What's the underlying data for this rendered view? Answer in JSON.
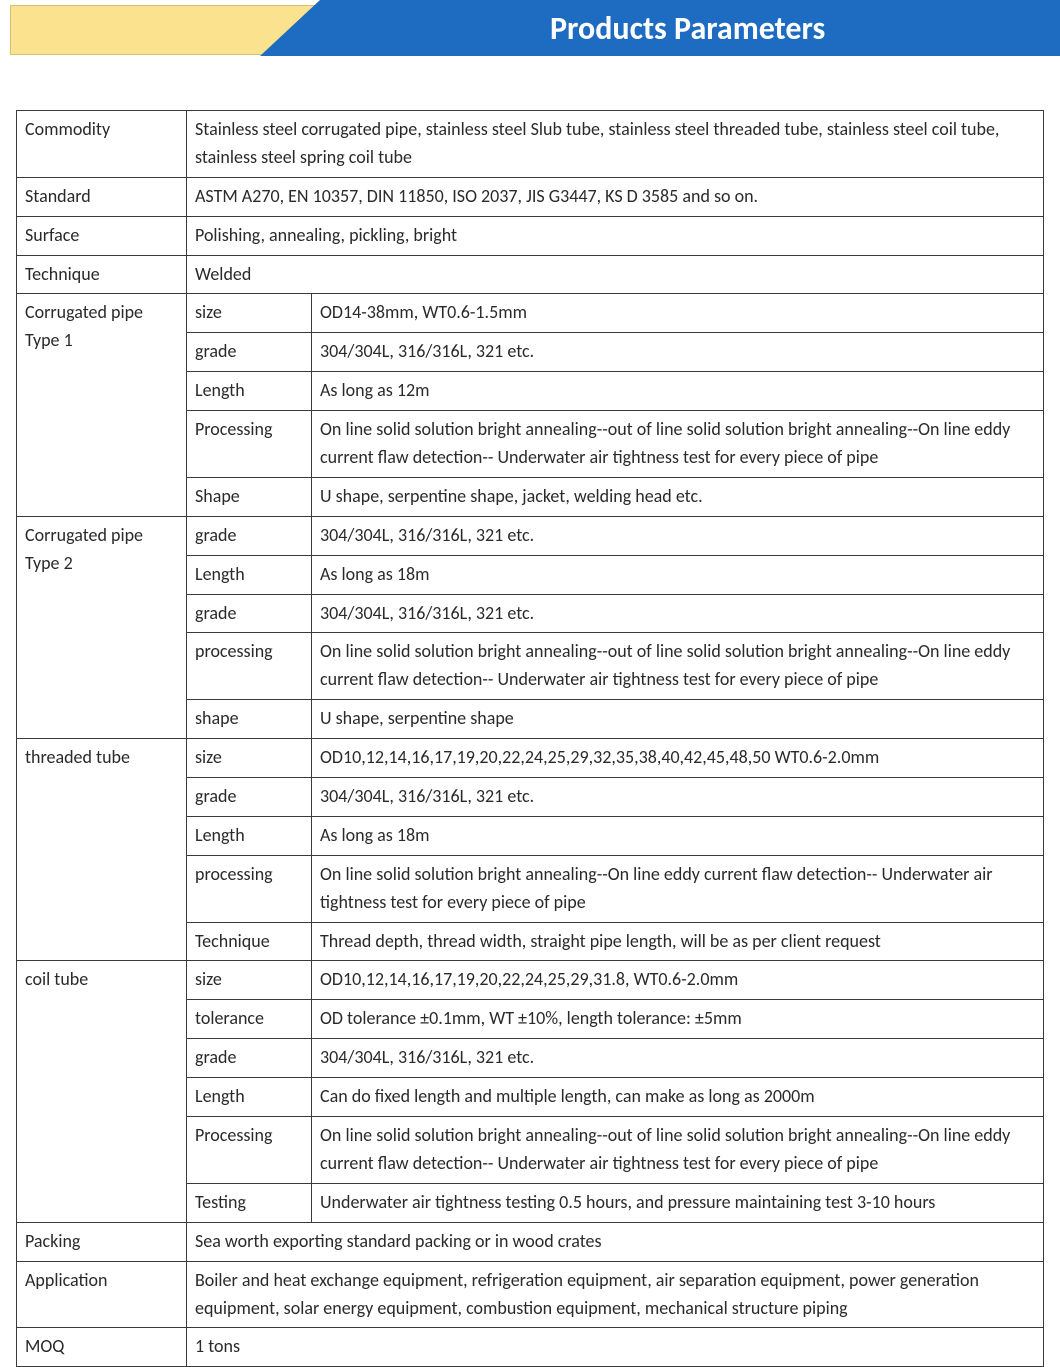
{
  "header": {
    "title": "Products Parameters"
  },
  "table": {
    "rows": [
      {
        "label": "Commodity",
        "value": "Stainless steel corrugated pipe, stainless steel Slub tube, stainless steel threaded tube, stainless steel coil tube, stainless steel spring coil tube",
        "span": 2
      },
      {
        "label": "Standard",
        "value": "ASTM A270, EN 10357, DIN 11850, ISO 2037, JIS G3447, KS D 3585 and so on.",
        "span": 2
      },
      {
        "label": "Surface",
        "value": "Polishing, annealing, pickling, bright",
        "span": 2
      },
      {
        "label": "Technique",
        "value": "Welded",
        "span": 2
      },
      {
        "group": "Corrugated pipe Type 1",
        "groupRows": 5,
        "sub": "size",
        "value": "OD14-38mm, WT0.6-1.5mm"
      },
      {
        "sub": "grade",
        "value": "304/304L, 316/316L, 321 etc."
      },
      {
        "sub": "Length",
        "value": "As long as 12m"
      },
      {
        "sub": "Processing",
        "value": "On line solid solution bright annealing--out of line solid solution bright annealing--On line eddy current flaw detection-- Underwater air tightness test for every piece of pipe"
      },
      {
        "sub": "Shape",
        "value": "U shape, serpentine shape, jacket, welding head etc."
      },
      {
        "group": "Corrugated pipe Type 2",
        "groupRows": 5,
        "sub": "grade",
        "value": "304/304L, 316/316L, 321 etc."
      },
      {
        "sub": "Length",
        "value": "As long as 18m"
      },
      {
        "sub": "grade",
        "value": "304/304L, 316/316L, 321 etc."
      },
      {
        "sub": "processing",
        "value": "On line solid solution bright annealing--out of line solid solution bright annealing--On line eddy current flaw detection-- Underwater air tightness test for every piece of pipe"
      },
      {
        "sub": "shape",
        "value": "U shape, serpentine shape"
      },
      {
        "group": "threaded tube",
        "groupRows": 5,
        "sub": "size",
        "value": "OD10,12,14,16,17,19,20,22,24,25,29,32,35,38,40,42,45,48,50 WT0.6-2.0mm"
      },
      {
        "sub": "grade",
        "value": "304/304L, 316/316L, 321 etc."
      },
      {
        "sub": "Length",
        "value": "As long as 18m"
      },
      {
        "sub": "processing",
        "value": "On line solid solution bright annealing--On line eddy current flaw detection-- Underwater air tightness test for every piece of pipe"
      },
      {
        "sub": "Technique",
        "value": "Thread depth, thread width, straight pipe length, will be as per client request"
      },
      {
        "group": "coil tube",
        "groupRows": 6,
        "sub": "size",
        "value": "OD10,12,14,16,17,19,20,22,24,25,29,31.8, WT0.6-2.0mm"
      },
      {
        "sub": "tolerance",
        "value": "OD tolerance  ±0.1mm, WT  ±10%, length tolerance:  ±5mm"
      },
      {
        "sub": "grade",
        "value": "304/304L, 316/316L, 321 etc."
      },
      {
        "sub": "Length",
        "value": "Can do fixed length and multiple length, can make as long as 2000m"
      },
      {
        "sub": "Processing",
        "value": "On line solid solution bright annealing--out of line solid solution bright annealing--On line eddy current flaw detection-- Underwater air tightness test for every piece of pipe"
      },
      {
        "sub": "Testing",
        "value": "Underwater air tightness testing 0.5 hours, and pressure maintaining test 3-10 hours"
      },
      {
        "label": "Packing",
        "value": "Sea worth exporting standard packing or in wood crates",
        "span": 2
      },
      {
        "label": "Application",
        "value": "Boiler and heat exchange equipment, refrigeration equipment, air separation equipment, power generation equipment, solar energy equipment, combustion equipment, mechanical structure piping",
        "span": 2
      },
      {
        "label": "MOQ",
        "value": "1 tons",
        "span": 2
      }
    ]
  }
}
